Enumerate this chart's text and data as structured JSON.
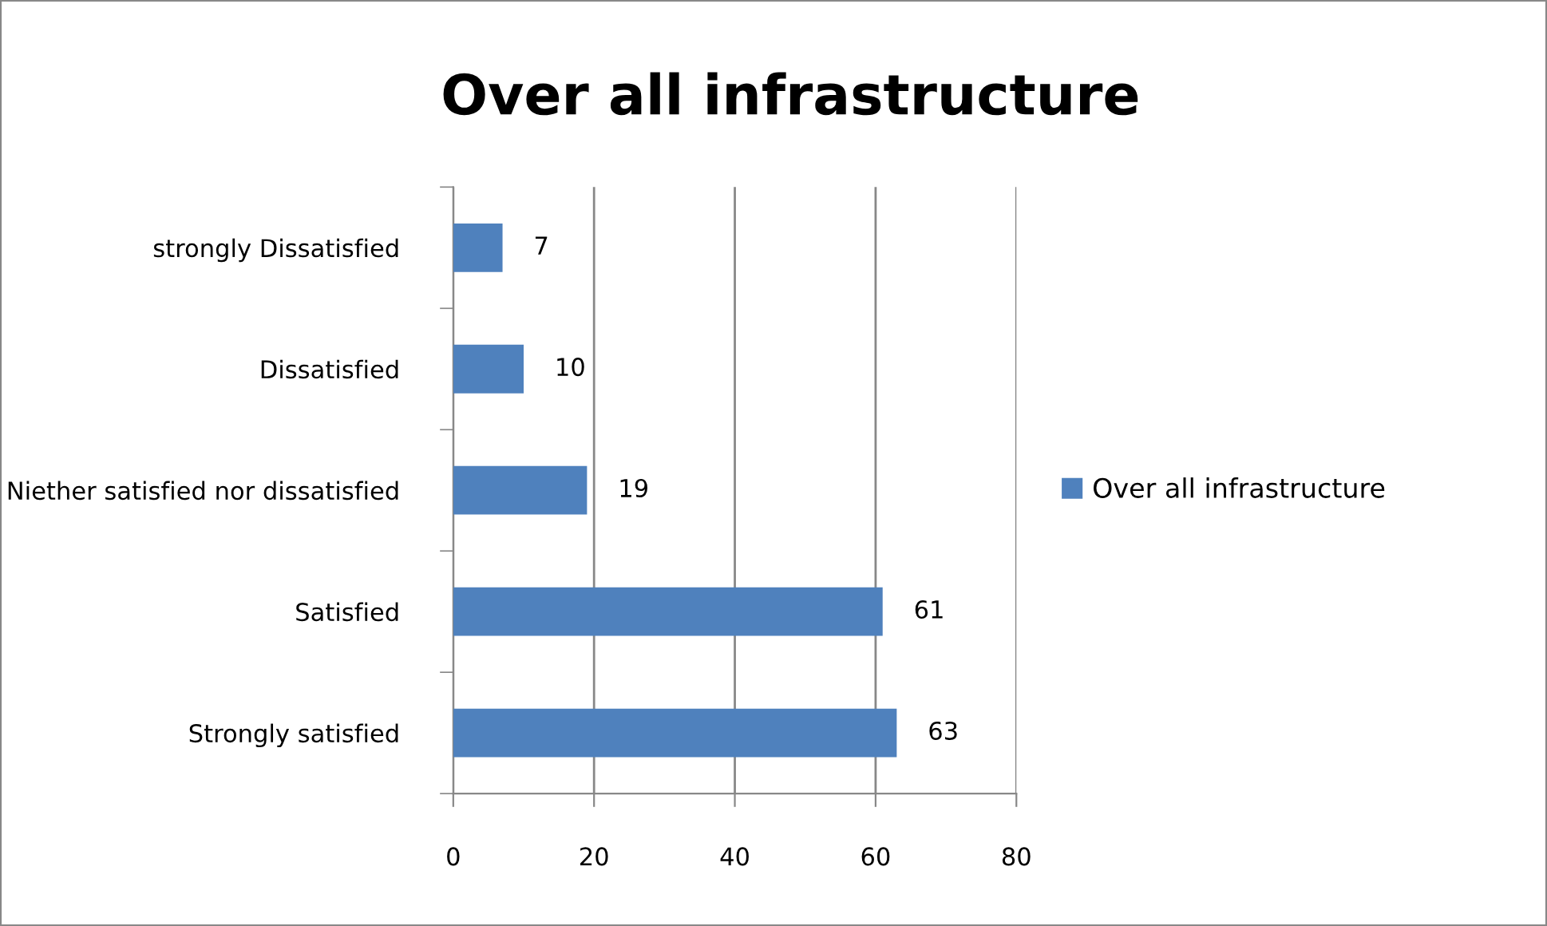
{
  "chart_data": {
    "type": "bar",
    "orientation": "horizontal",
    "title": "Over all infrastructure",
    "categories": [
      "strongly Dissatisfied",
      "Dissatisfied",
      "Niether satisfied nor dissatisfied",
      "Satisfied",
      "Strongly satisfied"
    ],
    "series": [
      {
        "name": "Over all infrastructure",
        "color": "#4f81bd",
        "values": [
          7,
          10,
          19,
          61,
          63
        ]
      }
    ],
    "xlim": [
      0,
      80
    ],
    "xticks": [
      0,
      20,
      40,
      60,
      80
    ],
    "grid": "x",
    "legend": "right",
    "data_labels": true
  }
}
